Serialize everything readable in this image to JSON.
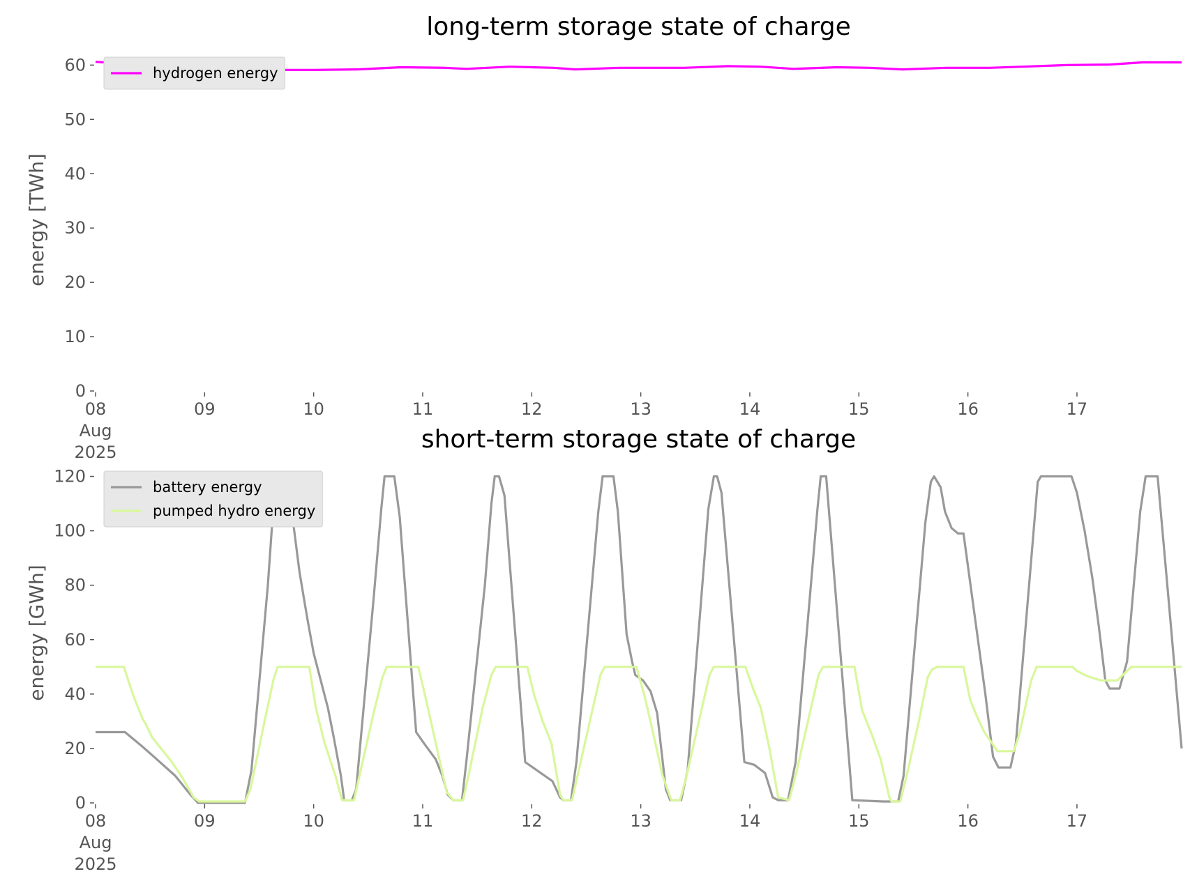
{
  "chart_data": [
    {
      "type": "line",
      "title": "long-term storage state of charge",
      "ylabel": "energy [TWh]",
      "xlim": [
        0,
        9.96
      ],
      "ylim": [
        0,
        63
      ],
      "xticks": [
        {
          "value": 0,
          "label": "08\nAug\n2025"
        },
        {
          "value": 1,
          "label": "09"
        },
        {
          "value": 2,
          "label": "10"
        },
        {
          "value": 3,
          "label": "11"
        },
        {
          "value": 4,
          "label": "12"
        },
        {
          "value": 5,
          "label": "13"
        },
        {
          "value": 6,
          "label": "14"
        },
        {
          "value": 7,
          "label": "15"
        },
        {
          "value": 8,
          "label": "16"
        },
        {
          "value": 9,
          "label": "17"
        }
      ],
      "yticks": [
        0,
        10,
        20,
        30,
        40,
        50,
        60
      ],
      "grid": false,
      "legend": "upper left",
      "series": [
        {
          "name": "hydrogen energy",
          "color": "#ff00ff",
          "x": [
            0,
            0.3,
            0.8,
            1.5,
            2.0,
            2.4,
            2.8,
            3.2,
            3.4,
            3.8,
            4.2,
            4.4,
            4.8,
            5.4,
            5.8,
            6.1,
            6.4,
            6.8,
            7.1,
            7.4,
            7.8,
            8.2,
            8.5,
            8.9,
            9.3,
            9.6,
            9.96
          ],
          "values": [
            60.6,
            60.2,
            59.5,
            59.1,
            59.1,
            59.2,
            59.6,
            59.5,
            59.3,
            59.7,
            59.5,
            59.2,
            59.5,
            59.5,
            59.8,
            59.7,
            59.3,
            59.6,
            59.5,
            59.2,
            59.5,
            59.5,
            59.7,
            60.0,
            60.1,
            60.5,
            60.5
          ]
        }
      ]
    },
    {
      "type": "line",
      "title": "short-term storage state of charge",
      "ylabel": "energy [GWh]",
      "xlim": [
        0,
        9.96
      ],
      "ylim": [
        0,
        125
      ],
      "xticks": [
        {
          "value": 0,
          "label": "08\nAug\n2025"
        },
        {
          "value": 1,
          "label": "09"
        },
        {
          "value": 2,
          "label": "10"
        },
        {
          "value": 3,
          "label": "11"
        },
        {
          "value": 4,
          "label": "12"
        },
        {
          "value": 5,
          "label": "13"
        },
        {
          "value": 6,
          "label": "14"
        },
        {
          "value": 7,
          "label": "15"
        },
        {
          "value": 8,
          "label": "16"
        },
        {
          "value": 9,
          "label": "17"
        }
      ],
      "yticks": [
        0,
        20,
        40,
        60,
        80,
        100,
        120
      ],
      "grid": false,
      "legend": "upper left",
      "series": [
        {
          "name": "battery energy",
          "color": "#999999",
          "x": [
            0,
            0.27,
            0.42,
            0.52,
            0.73,
            0.87,
            0.94,
            1.37,
            1.43,
            1.58,
            1.65,
            1.74,
            1.78,
            1.87,
            1.92,
            1.95,
            2.0,
            2.13,
            2.18,
            2.25,
            2.28,
            2.35,
            2.39,
            2.55,
            2.62,
            2.65,
            2.74,
            2.79,
            2.94,
            3.01,
            3.12,
            3.18,
            3.23,
            3.28,
            3.36,
            3.4,
            3.57,
            3.63,
            3.66,
            3.7,
            3.75,
            3.94,
            4.01,
            4.19,
            4.26,
            4.29,
            4.36,
            4.41,
            4.61,
            4.65,
            4.75,
            4.79,
            4.87,
            4.92,
            4.95,
            5.02,
            5.09,
            5.15,
            5.23,
            5.27,
            5.37,
            5.43,
            5.62,
            5.67,
            5.7,
            5.74,
            5.95,
            6.04,
            6.14,
            6.21,
            6.26,
            6.35,
            6.42,
            6.62,
            6.65,
            6.7,
            6.94,
            7.22,
            7.28,
            7.36,
            7.41,
            7.61,
            7.66,
            7.69,
            7.75,
            7.79,
            7.85,
            7.91,
            7.96,
            8.16,
            8.23,
            8.28,
            8.39,
            8.44,
            8.64,
            8.67,
            8.95,
            9.0,
            9.07,
            9.14,
            9.2,
            9.26,
            9.3,
            9.39,
            9.46,
            9.58,
            9.63,
            9.74,
            9.84,
            9.96
          ],
          "values": [
            26,
            26,
            21,
            17.5,
            10,
            3,
            0,
            0,
            12,
            80,
            120,
            120,
            113,
            85,
            73,
            66,
            55,
            35,
            25,
            10,
            1,
            1,
            5,
            75,
            108,
            120,
            120,
            105,
            26,
            22,
            16,
            10,
            3,
            1,
            1,
            15,
            80,
            110,
            120,
            120,
            113,
            15,
            13,
            8,
            2,
            1,
            1,
            15,
            107,
            120,
            120,
            107,
            62,
            52,
            47,
            45,
            41,
            33,
            5,
            1,
            1,
            12,
            108,
            120,
            120,
            114,
            15,
            14,
            11,
            2,
            1,
            1,
            15,
            108,
            120,
            120,
            1,
            0.5,
            0.5,
            0.5,
            10,
            103,
            118,
            120,
            116,
            107,
            101,
            99,
            99,
            40,
            17,
            13,
            13,
            22,
            118,
            120,
            120,
            114,
            100,
            83,
            65,
            45,
            42,
            42,
            52,
            107,
            120,
            120,
            75,
            20
          ]
        },
        {
          "name": "pumped hydro energy",
          "color": "#d9f79c",
          "x": [
            0,
            0.26,
            0.3,
            0.35,
            0.43,
            0.46,
            0.52,
            0.6,
            0.7,
            0.8,
            0.9,
            0.95,
            1.37,
            1.42,
            1.55,
            1.63,
            1.67,
            1.96,
            2.02,
            2.1,
            2.2,
            2.26,
            2.37,
            2.42,
            2.55,
            2.63,
            2.67,
            2.96,
            3.03,
            3.12,
            3.22,
            3.28,
            3.37,
            3.42,
            3.55,
            3.63,
            3.67,
            3.96,
            4.02,
            4.1,
            4.18,
            4.26,
            4.29,
            4.37,
            4.42,
            4.55,
            4.63,
            4.67,
            4.96,
            5.03,
            5.1,
            5.2,
            5.28,
            5.36,
            5.42,
            5.55,
            5.63,
            5.67,
            5.96,
            6.03,
            6.1,
            6.18,
            6.26,
            6.36,
            6.42,
            6.55,
            6.63,
            6.67,
            6.96,
            7.03,
            7.12,
            7.2,
            7.28,
            7.3,
            7.38,
            7.45,
            7.55,
            7.63,
            7.67,
            7.72,
            7.96,
            8.02,
            8.08,
            8.15,
            8.22,
            8.27,
            8.42,
            8.47,
            8.58,
            8.63,
            8.96,
            9.0,
            9.1,
            9.22,
            9.37,
            9.42,
            9.5,
            9.96
          ],
          "values": [
            50,
            50,
            45,
            39,
            31,
            29,
            24,
            20,
            15,
            9,
            2,
            0.5,
            0.5,
            5,
            30,
            45,
            50,
            50,
            35,
            22,
            10,
            1,
            1,
            10,
            33,
            46,
            50,
            50,
            38,
            22,
            4,
            1,
            1,
            10,
            35,
            47,
            50,
            50,
            40,
            30,
            22,
            3,
            1,
            1,
            10,
            33,
            47,
            50,
            50,
            40,
            28,
            10,
            1,
            1,
            10,
            33,
            47,
            50,
            50,
            42,
            35,
            20,
            2,
            1,
            10,
            33,
            47,
            50,
            50,
            34,
            25,
            16,
            2,
            0.5,
            0.5,
            12,
            30,
            46,
            49,
            50,
            50,
            38,
            32,
            26,
            22,
            19,
            19,
            25,
            45,
            50,
            50,
            48.5,
            46.5,
            45,
            45,
            47,
            50,
            50
          ]
        }
      ]
    }
  ]
}
